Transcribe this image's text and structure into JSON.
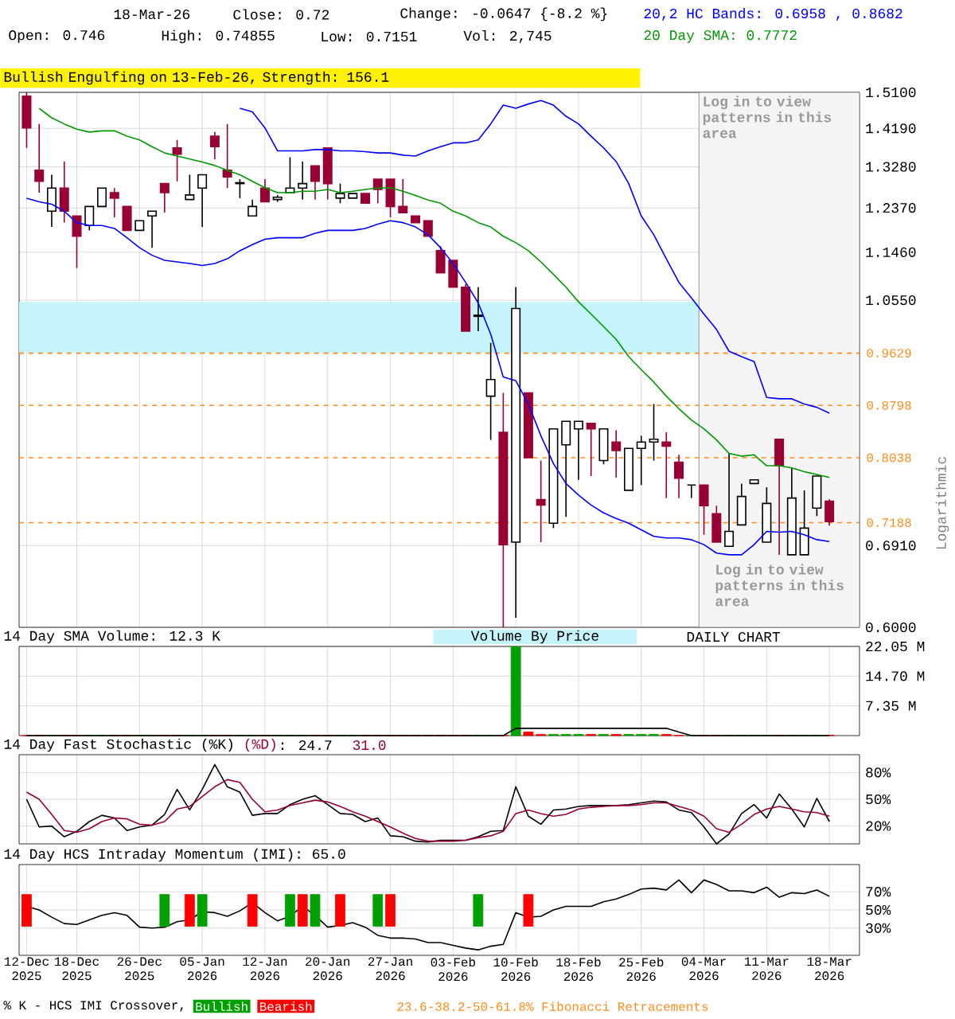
{
  "chart_data": [
    {
      "type": "candlestick",
      "categories": [
        "12-Dec 2025",
        null,
        null,
        null,
        "18-Dec 2025",
        null,
        null,
        null,
        null,
        "26-Dec 2025",
        null,
        null,
        null,
        null,
        "05-Jan 2026",
        null,
        null,
        null,
        null,
        "12-Jan 2026",
        null,
        null,
        null,
        null,
        "20-Jan 2026",
        null,
        null,
        null,
        null,
        "27-Jan 2026",
        null,
        null,
        null,
        null,
        "03-Feb 2026",
        null,
        null,
        null,
        null,
        "10-Feb 2026",
        null,
        null,
        null,
        null,
        "18-Feb 2026",
        null,
        null,
        null,
        null,
        "25-Feb 2026",
        null,
        null,
        null,
        null,
        "04-Mar 2026",
        null,
        null,
        null,
        null,
        "11-Mar 2026",
        null,
        null,
        null,
        null,
        "18-Mar 2026"
      ],
      "ohlc": [
        [
          1.5,
          1.51,
          1.372,
          1.42
        ],
        [
          1.32,
          1.43,
          1.27,
          1.295
        ],
        [
          1.23,
          1.31,
          1.197,
          1.28
        ],
        [
          1.28,
          1.34,
          1.206,
          1.23
        ],
        [
          1.22,
          1.22,
          1.115,
          1.178
        ],
        [
          1.2,
          1.24,
          1.19,
          1.24
        ],
        [
          1.24,
          1.28,
          1.24,
          1.28
        ],
        [
          1.27,
          1.28,
          1.217,
          1.258
        ],
        [
          1.24,
          1.24,
          1.19,
          1.19
        ],
        [
          1.19,
          1.21,
          1.19,
          1.21
        ],
        [
          1.22,
          1.23,
          1.155,
          1.23
        ],
        [
          1.29,
          1.29,
          1.227,
          1.27
        ],
        [
          1.372,
          1.391,
          1.295,
          1.357
        ],
        [
          1.255,
          1.31,
          1.255,
          1.265
        ],
        [
          1.28,
          1.31,
          1.197,
          1.31
        ],
        [
          1.4,
          1.41,
          1.345,
          1.375
        ],
        [
          1.32,
          1.43,
          1.28,
          1.305
        ],
        [
          1.29,
          1.3,
          1.258,
          1.292
        ],
        [
          1.22,
          1.255,
          1.22,
          1.24
        ],
        [
          1.28,
          1.3,
          1.25,
          1.25
        ],
        [
          1.255,
          1.265,
          1.25,
          1.26
        ],
        [
          1.27,
          1.35,
          1.27,
          1.28
        ],
        [
          1.28,
          1.34,
          1.255,
          1.29
        ],
        [
          1.33,
          1.33,
          1.255,
          1.295
        ],
        [
          1.372,
          1.372,
          1.255,
          1.29
        ],
        [
          1.258,
          1.29,
          1.247,
          1.268
        ],
        [
          1.258,
          1.268,
          1.258,
          1.268
        ],
        [
          1.268,
          1.268,
          1.247,
          1.247
        ],
        [
          1.3,
          1.3,
          1.247,
          1.277
        ],
        [
          1.3,
          1.3,
          1.217,
          1.24
        ],
        [
          1.24,
          1.3,
          1.227,
          1.227
        ],
        [
          1.22,
          1.22,
          1.206,
          1.206
        ],
        [
          1.21,
          1.21,
          1.178,
          1.178
        ],
        [
          1.149,
          1.158,
          1.106,
          1.106
        ],
        [
          1.13,
          1.13,
          1.079,
          1.079
        ],
        [
          1.079,
          1.085,
          1.0,
          1.0
        ],
        [
          1.026,
          1.079,
          1.0,
          1.028
        ],
        [
          0.894,
          0.98,
          0.829,
          0.92
        ],
        [
          0.84,
          0.899,
          0.6,
          0.692
        ],
        [
          0.695,
          1.079,
          0.61,
          1.04
        ],
        [
          0.899,
          0.899,
          0.804,
          0.804
        ],
        [
          0.748,
          0.8,
          0.695,
          0.741
        ],
        [
          0.718,
          0.845,
          0.712,
          0.845
        ],
        [
          0.822,
          0.856,
          0.726,
          0.856
        ],
        [
          0.845,
          0.856,
          0.774,
          0.856
        ],
        [
          0.853,
          0.853,
          0.779,
          0.845
        ],
        [
          0.8,
          0.845,
          0.795,
          0.845
        ],
        [
          0.826,
          0.843,
          0.777,
          0.814
        ],
        [
          0.76,
          0.817,
          0.76,
          0.817
        ],
        [
          0.817,
          0.835,
          0.767,
          0.826
        ],
        [
          0.826,
          0.882,
          0.8,
          0.83
        ],
        [
          0.826,
          0.84,
          0.75,
          0.82
        ],
        [
          0.798,
          0.808,
          0.75,
          0.776
        ],
        [
          0.767,
          0.767,
          0.75,
          0.767
        ],
        [
          0.767,
          0.767,
          0.704,
          0.74
        ],
        [
          0.73,
          0.74,
          0.695,
          0.695
        ],
        [
          0.69,
          0.81,
          0.69,
          0.708
        ],
        [
          0.716,
          0.769,
          0.716,
          0.752
        ],
        [
          0.769,
          0.774,
          0.769,
          0.774
        ],
        [
          0.695,
          0.764,
          0.695,
          0.743
        ],
        [
          0.83,
          0.83,
          0.68,
          0.793
        ],
        [
          0.68,
          0.79,
          0.68,
          0.75
        ],
        [
          0.68,
          0.76,
          0.68,
          0.712
        ],
        [
          0.737,
          0.779,
          0.727,
          0.779
        ],
        [
          0.746,
          0.74855,
          0.7151,
          0.72
        ]
      ],
      "colors": [
        "#990033",
        "#990033",
        "#ffffff",
        "#990033",
        "#990033",
        "#ffffff",
        "#ffffff",
        "#990033",
        "#990033",
        "#ffffff",
        "#ffffff",
        "#990033",
        "#990033",
        "#ffffff",
        "#ffffff",
        "#990033",
        "#990033",
        "#ffffff",
        "#ffffff",
        "#990033",
        "#ffffff",
        "#ffffff",
        "#ffffff",
        "#990033",
        "#990033",
        "#ffffff",
        "#ffffff",
        "#990033",
        "#990033",
        "#990033",
        "#990033",
        "#990033",
        "#990033",
        "#990033",
        "#990033",
        "#990033",
        "#ffffff",
        "#ffffff",
        "#990033",
        "#ffffff",
        "#990033",
        "#990033",
        "#ffffff",
        "#ffffff",
        "#ffffff",
        "#990033",
        "#ffffff",
        "#990033",
        "#ffffff",
        "#ffffff",
        "#ffffff",
        "#990033",
        "#990033",
        "#000000",
        "#990033",
        "#990033",
        "#ffffff",
        "#ffffff",
        "#ffffff",
        "#ffffff",
        "#990033",
        "#ffffff",
        "#ffffff",
        "#ffffff",
        "#990033"
      ],
      "series": [
        {
          "name": "20,2 HC Bands: 0.6958 , 0.8682",
          "type": "line",
          "color": "#0000ff",
          "values": [
            null,
            null,
            null,
            null,
            null,
            null,
            null,
            null,
            null,
            null,
            null,
            null,
            null,
            null,
            null,
            null,
            null,
            1.469,
            1.46,
            1.42,
            1.365,
            1.365,
            1.365,
            1.368,
            1.368,
            1.365,
            1.365,
            1.363,
            1.36,
            1.36,
            1.355,
            1.353,
            1.365,
            1.375,
            1.384,
            1.384,
            1.391,
            1.43,
            1.477,
            1.469,
            1.48,
            1.489,
            1.477,
            1.449,
            1.43,
            1.4,
            1.372,
            1.34,
            1.29,
            1.22,
            1.181,
            1.133,
            1.088,
            1.059,
            1.03,
            1.003,
            0.966,
            0.957,
            0.949,
            0.892,
            0.89,
            0.89,
            0.882,
            0.877,
            0.8682
          ]
        },
        {
          "type": "line",
          "color": "#0000ff",
          "values": [
            1.258,
            1.25,
            1.245,
            1.23,
            1.206,
            1.2,
            1.2,
            1.194,
            1.175,
            1.155,
            1.14,
            1.13,
            1.127,
            1.124,
            1.12,
            1.124,
            1.133,
            1.149,
            1.161,
            1.172,
            1.175,
            1.175,
            1.175,
            1.184,
            1.19,
            1.19,
            1.19,
            1.194,
            1.203,
            1.21,
            1.206,
            1.197,
            1.181,
            1.155,
            1.124,
            1.088,
            1.05,
            0.995,
            0.924,
            0.918,
            0.882,
            0.835,
            0.796,
            0.769,
            0.754,
            0.741,
            0.731,
            0.724,
            0.718,
            0.71,
            0.702,
            0.7,
            0.7,
            0.698,
            0.692,
            0.682,
            0.68,
            0.68,
            0.692,
            0.708,
            0.707,
            0.708,
            0.704,
            0.698,
            0.6958
          ]
        },
        {
          "name": "20 Day SMA: 0.7772",
          "type": "line",
          "color": "#009900",
          "values": [
            null,
            1.469,
            1.445,
            1.43,
            1.417,
            1.41,
            1.413,
            1.413,
            1.4,
            1.391,
            1.375,
            1.36,
            1.353,
            1.346,
            1.339,
            1.331,
            1.32,
            1.31,
            1.295,
            1.281,
            1.27,
            1.27,
            1.273,
            1.273,
            1.277,
            1.27,
            1.273,
            1.277,
            1.28,
            1.281,
            1.273,
            1.264,
            1.254,
            1.247,
            1.23,
            1.22,
            1.206,
            1.197,
            1.178,
            1.165,
            1.149,
            1.127,
            1.103,
            1.079,
            1.052,
            1.03,
            1.008,
            0.986,
            0.957,
            0.936,
            0.916,
            0.894,
            0.875,
            0.858,
            0.845,
            0.829,
            0.81,
            0.806,
            0.808,
            0.793,
            0.793,
            0.79,
            0.785,
            0.781,
            0.7772
          ]
        }
      ],
      "log": true,
      "ylim": [
        0.6,
        1.51
      ],
      "yticks": [
        {
          "value": 0.6,
          "label": "0.6000"
        },
        {
          "value": 0.691,
          "label": "0.6910"
        },
        {
          "value": 1.055,
          "label": "1.0550"
        },
        {
          "value": 1.146,
          "label": "1.1460"
        },
        {
          "value": 1.237,
          "label": "1.2370"
        },
        {
          "value": 1.328,
          "label": "1.3280"
        },
        {
          "value": 1.419,
          "label": "1.4190"
        },
        {
          "value": 1.51,
          "label": "1.5100"
        }
      ],
      "grid": true,
      "tick_labels": "y",
      "ylabel": "Logarithmic",
      "legend": "top right",
      "ref_lines": [
        {
          "axis": "y",
          "value": 0.9629,
          "label": "0.9629",
          "color": "#ff8c1a",
          "line_style": "dashed"
        },
        {
          "axis": "y",
          "value": 0.8798,
          "label": "0.8798",
          "color": "#ff8c1a",
          "line_style": "dashed"
        },
        {
          "axis": "y",
          "value": 0.8038,
          "label": "0.8038",
          "color": "#ff8c1a",
          "line_style": "dashed"
        },
        {
          "axis": "y",
          "value": 0.7188,
          "label": "0.7188",
          "color": "#ff8c1a",
          "line_style": "dashed"
        }
      ],
      "bands": [
        {
          "axis": "y",
          "from": 0.963,
          "to": 1.052,
          "color": "#c6f4fb"
        },
        {
          "axis": "x",
          "from": "04-Mar 2026",
          "to": "18-Mar 2026",
          "label": "Log in to view patterns in this area",
          "color": "#f4f4f4"
        }
      ],
      "annotations": [
        "18-Mar-26",
        "Close: 0.72",
        "Change: -0.0647 {-8.2 %}",
        "Open: 0.746",
        "High: 0.74855",
        "Low: 0.7151",
        "Vol: 2,745",
        "Bullish Engulfing on 13-Feb-26, Strength: 156.1",
        "Log in to view patterns in this area"
      ]
    },
    {
      "type": "bar",
      "title": "14 Day SMA Volume: 12.3 K",
      "categories": [
        "12-Dec 2025",
        null,
        null,
        null,
        "18-Dec 2025",
        null,
        null,
        null,
        null,
        "26-Dec 2025",
        null,
        null,
        null,
        null,
        "05-Jan 2026",
        null,
        null,
        null,
        null,
        "12-Jan 2026",
        null,
        null,
        null,
        null,
        "20-Jan 2026",
        null,
        null,
        null,
        null,
        "27-Jan 2026",
        null,
        null,
        null,
        null,
        "03-Feb 2026",
        null,
        null,
        null,
        null,
        "10-Feb 2026",
        null,
        null,
        null,
        null,
        "18-Feb 2026",
        null,
        null,
        null,
        null,
        "25-Feb 2026",
        null,
        null,
        null,
        null,
        "04-Mar 2026",
        null,
        null,
        null,
        null,
        "11-Mar 2026",
        null,
        null,
        null,
        null,
        "18-Mar 2026"
      ],
      "values": [
        0,
        0,
        0,
        0,
        0,
        0,
        0,
        0,
        0,
        0,
        0,
        0,
        0,
        0,
        0,
        0,
        0,
        0,
        0,
        0,
        0,
        0,
        0,
        0,
        0,
        0,
        0,
        0,
        0,
        0,
        0,
        0,
        0,
        0,
        0,
        0,
        0,
        0,
        0,
        22,
        0.9,
        0.3,
        0.3,
        0.3,
        0.3,
        0.3,
        0.3,
        0.3,
        0.3,
        0.3,
        0.3,
        0.3,
        0,
        0,
        0,
        0,
        0,
        0,
        0,
        0,
        0,
        0,
        0,
        0,
        0.1
      ],
      "colors": [
        "#ff0000",
        "#ff0000",
        "#00a000",
        "#ff0000",
        "#ff0000",
        "#00a000",
        "#00a000",
        "#ff0000",
        "#ff0000",
        "#00a000",
        "#00a000",
        "#ff0000",
        "#ff0000",
        "#00a000",
        "#00a000",
        "#ff0000",
        "#ff0000",
        "#00a000",
        "#00a000",
        "#ff0000",
        "#00a000",
        "#00a000",
        "#00a000",
        "#ff0000",
        "#ff0000",
        "#00a000",
        "#00a000",
        "#ff0000",
        "#ff0000",
        "#ff0000",
        "#ff0000",
        "#ff0000",
        "#ff0000",
        "#ff0000",
        "#ff0000",
        "#ff0000",
        "#00a000",
        "#00a000",
        "#ff0000",
        "#00a000",
        "#ff0000",
        "#ff0000",
        "#00a000",
        "#00a000",
        "#00a000",
        "#ff0000",
        "#00a000",
        "#ff0000",
        "#00a000",
        "#00a000",
        "#00a000",
        "#ff0000",
        "#ff0000",
        "#00a000",
        "#ff0000",
        "#ff0000",
        "#00a000",
        "#00a000",
        "#00a000",
        "#00a000",
        "#ff0000",
        "#00a000",
        "#00a000",
        "#00a000",
        "#ff0000"
      ],
      "series": [
        {
          "type": "line",
          "color": "#000000",
          "values": [
            0,
            0,
            0,
            0,
            0,
            0,
            0,
            0,
            0,
            0,
            0,
            0,
            0,
            0,
            0,
            0,
            0,
            0,
            0,
            0,
            0,
            0,
            0,
            0,
            0,
            0,
            0,
            0,
            0,
            0,
            0,
            0,
            0,
            0,
            0,
            0,
            0,
            0,
            0,
            1.8,
            1.8,
            1.8,
            1.8,
            1.8,
            1.8,
            1.8,
            1.8,
            1.8,
            1.8,
            1.8,
            1.8,
            1.8,
            0.9,
            0,
            0,
            0,
            0,
            0,
            0,
            0,
            0,
            0,
            0,
            0,
            0
          ]
        }
      ],
      "ylim": [
        0,
        22.05
      ],
      "yticks": [
        {
          "value": 7.35,
          "label": "7.35 M"
        },
        {
          "value": 14.7,
          "label": "14.70 M"
        },
        {
          "value": 22.05,
          "label": "22.05 M"
        }
      ],
      "grid": true,
      "tick_labels": "y",
      "annotations": [
        "Volume By Price",
        "DAILY CHART"
      ]
    },
    {
      "type": "line",
      "title": "14 Day Fast Stochastic (%K)",
      "categories": [
        "12-Dec 2025",
        null,
        null,
        null,
        "18-Dec 2025",
        null,
        null,
        null,
        null,
        "26-Dec 2025",
        null,
        null,
        null,
        null,
        "05-Jan 2026",
        null,
        null,
        null,
        null,
        "12-Jan 2026",
        null,
        null,
        null,
        null,
        "20-Jan 2026",
        null,
        null,
        null,
        null,
        "27-Jan 2026",
        null,
        null,
        null,
        null,
        "03-Feb 2026",
        null,
        null,
        null,
        null,
        "10-Feb 2026",
        null,
        null,
        null,
        null,
        "18-Feb 2026",
        null,
        null,
        null,
        null,
        "25-Feb 2026",
        null,
        null,
        null,
        null,
        "04-Mar 2026",
        null,
        null,
        null,
        null,
        "11-Mar 2026",
        null,
        null,
        null,
        null,
        "18-Mar 2026"
      ],
      "series": [
        {
          "color": "#000000",
          "values": [
            50,
            19,
            20,
            8,
            14,
            25,
            32,
            29,
            15,
            19,
            21,
            33,
            61,
            38,
            61,
            89,
            64,
            58,
            32,
            34,
            34,
            44,
            50,
            54,
            44,
            34,
            33,
            25,
            29,
            9,
            8,
            3,
            2,
            4,
            4,
            4,
            8,
            14,
            15,
            64,
            31,
            22,
            38,
            39,
            42,
            43,
            43,
            43,
            44,
            46,
            48,
            47,
            38,
            35,
            19,
            0,
            11,
            34,
            44,
            29,
            56,
            39,
            19,
            51,
            25
          ]
        },
        {
          "name": "(%D)",
          "color": "#990033",
          "values": [
            58,
            50,
            33,
            15,
            13,
            17,
            25,
            29,
            28,
            22,
            21,
            25,
            39,
            42,
            53,
            64,
            72,
            69,
            50,
            36,
            38,
            43,
            46,
            49,
            47,
            42,
            36,
            31,
            25,
            19,
            12,
            6,
            3,
            3,
            3,
            4,
            7,
            9,
            14,
            34,
            38,
            34,
            31,
            33,
            39,
            41,
            42,
            43,
            43,
            44,
            46,
            46,
            42,
            38,
            31,
            17,
            13,
            22,
            33,
            39,
            42,
            39,
            36,
            35,
            31.0
          ]
        }
      ],
      "ylim": [
        0,
        100
      ],
      "yticks": [
        {
          "value": 20,
          "label": "20%"
        },
        {
          "value": 50,
          "label": "50%"
        },
        {
          "value": 80,
          "label": "80%"
        }
      ],
      "grid": true,
      "tick_labels": "y",
      "legend": "top left",
      "annotations": [
        ": 24.7",
        "31.0"
      ]
    },
    {
      "type": "line",
      "title": "14 Day HCS Intraday Momentum (IMI): 65.0",
      "categories": [
        "12-Dec 2025",
        null,
        null,
        null,
        "18-Dec 2025",
        null,
        null,
        null,
        null,
        "26-Dec 2025",
        null,
        null,
        null,
        null,
        "05-Jan 2026",
        null,
        null,
        null,
        null,
        "12-Jan 2026",
        null,
        null,
        null,
        null,
        "20-Jan 2026",
        null,
        null,
        null,
        null,
        "27-Jan 2026",
        null,
        null,
        null,
        null,
        "03-Feb 2026",
        null,
        null,
        null,
        null,
        "10-Feb 2026",
        null,
        null,
        null,
        null,
        "18-Feb 2026",
        null,
        null,
        null,
        null,
        "25-Feb 2026",
        null,
        null,
        null,
        null,
        "04-Mar 2026",
        null,
        null,
        null,
        null,
        "11-Mar 2026",
        null,
        null,
        null,
        null,
        "18-Mar 2026"
      ],
      "series": [
        {
          "color": "#000000",
          "values": [
            54,
            50,
            42,
            35,
            34,
            39,
            44,
            47,
            44,
            31,
            30,
            31,
            37,
            39,
            48,
            47,
            43,
            49,
            58,
            47,
            38,
            43,
            54,
            44,
            31,
            33,
            36,
            31,
            22,
            19,
            19,
            18,
            14,
            14,
            11,
            8,
            6,
            10,
            12,
            47,
            42,
            43,
            50,
            54,
            54,
            54,
            59,
            62,
            67,
            73,
            74,
            72,
            83,
            69,
            83,
            78,
            71,
            71,
            69,
            75,
            64,
            69,
            68,
            72,
            65.0
          ]
        },
        {
          "type": "bar",
          "name": "Bullish",
          "color": "#00a000",
          "base": [
            null,
            null,
            null,
            null,
            null,
            null,
            null,
            null,
            null,
            null,
            null,
            32,
            null,
            null,
            32,
            null,
            null,
            null,
            null,
            null,
            null,
            32,
            null,
            32,
            null,
            null,
            null,
            null,
            32,
            null,
            null,
            null,
            null,
            null,
            null,
            null,
            32,
            null,
            null,
            null,
            null,
            null,
            null,
            null,
            null,
            null,
            null,
            null,
            null,
            null,
            null,
            null,
            null,
            null,
            null,
            null,
            null,
            null,
            null,
            null,
            null,
            null,
            null,
            null,
            null
          ],
          "values": [
            null,
            null,
            null,
            null,
            null,
            null,
            null,
            null,
            null,
            null,
            null,
            35,
            null,
            null,
            35,
            null,
            null,
            null,
            null,
            null,
            null,
            35,
            null,
            35,
            null,
            null,
            null,
            null,
            35,
            null,
            null,
            null,
            null,
            null,
            null,
            null,
            35,
            null,
            null,
            null,
            null,
            null,
            null,
            null,
            null,
            null,
            null,
            null,
            null,
            null,
            null,
            null,
            null,
            null,
            null,
            null,
            null,
            null,
            null,
            null,
            null,
            null,
            null,
            null,
            null
          ]
        },
        {
          "type": "bar",
          "name": "Bearish",
          "color": "#ff0000",
          "base": [
            32,
            null,
            null,
            null,
            null,
            null,
            null,
            null,
            null,
            null,
            null,
            null,
            null,
            32,
            null,
            null,
            null,
            null,
            32,
            null,
            null,
            null,
            32,
            null,
            null,
            32,
            null,
            null,
            null,
            32,
            null,
            null,
            null,
            null,
            null,
            null,
            null,
            null,
            null,
            null,
            32,
            null,
            null,
            null,
            null,
            null,
            null,
            null,
            null,
            null,
            null,
            null,
            null,
            null,
            null,
            null,
            null,
            null,
            null,
            null,
            null,
            null,
            null,
            null,
            null
          ],
          "values": [
            35,
            null,
            null,
            null,
            null,
            null,
            null,
            null,
            null,
            null,
            null,
            null,
            null,
            35,
            null,
            null,
            null,
            null,
            35,
            null,
            null,
            null,
            35,
            null,
            null,
            35,
            null,
            null,
            null,
            35,
            null,
            null,
            null,
            null,
            null,
            null,
            null,
            null,
            null,
            null,
            35,
            null,
            null,
            null,
            null,
            null,
            null,
            null,
            null,
            null,
            null,
            null,
            null,
            null,
            null,
            null,
            null,
            null,
            null,
            null,
            null,
            null,
            null,
            null,
            null
          ]
        }
      ],
      "ylim": [
        0,
        100
      ],
      "yticks": [
        {
          "value": 30,
          "label": "30%"
        },
        {
          "value": 50,
          "label": "50%"
        },
        {
          "value": 70,
          "label": "70%"
        }
      ],
      "grid": true,
      "legend": "bottom",
      "legend_title": "% K - HCS IMI Crossover,",
      "annotations": [
        "23.6-38.2-50-61.8% Fibonacci Retracements"
      ]
    }
  ]
}
